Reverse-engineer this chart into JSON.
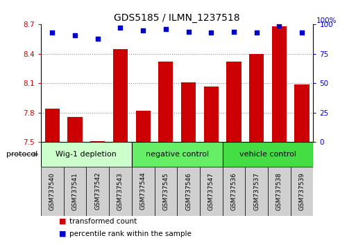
{
  "title": "GDS5185 / ILMN_1237518",
  "samples": [
    "GSM737540",
    "GSM737541",
    "GSM737542",
    "GSM737543",
    "GSM737544",
    "GSM737545",
    "GSM737546",
    "GSM737547",
    "GSM737536",
    "GSM737537",
    "GSM737538",
    "GSM737539"
  ],
  "bar_values": [
    7.84,
    7.76,
    7.51,
    8.45,
    7.82,
    8.32,
    8.11,
    8.07,
    8.32,
    8.4,
    8.68,
    8.09
  ],
  "percentile_values": [
    93,
    91,
    88,
    97,
    95,
    96,
    94,
    93,
    94,
    93,
    99,
    93
  ],
  "ylim_left": [
    7.5,
    8.7
  ],
  "ylim_right": [
    0,
    100
  ],
  "yticks_left": [
    7.5,
    7.8,
    8.1,
    8.4,
    8.7
  ],
  "yticks_right": [
    0,
    25,
    50,
    75,
    100
  ],
  "bar_color": "#cc0000",
  "dot_color": "#0000cc",
  "group_colors": [
    "#ccffcc",
    "#66ee66",
    "#44dd44"
  ],
  "groups": [
    {
      "label": "Wig-1 depletion",
      "start": 0,
      "end": 4
    },
    {
      "label": "negative control",
      "start": 4,
      "end": 8
    },
    {
      "label": "vehicle control",
      "start": 8,
      "end": 12
    }
  ],
  "protocol_label": "protocol",
  "legend_bar_label": "transformed count",
  "legend_dot_label": "percentile rank within the sample",
  "grid_color": "#888888",
  "tick_label_color_left": "#cc0000",
  "tick_label_color_right": "#0000cc",
  "xtick_bg_color": "#d0d0d0",
  "background_color": "#ffffff"
}
